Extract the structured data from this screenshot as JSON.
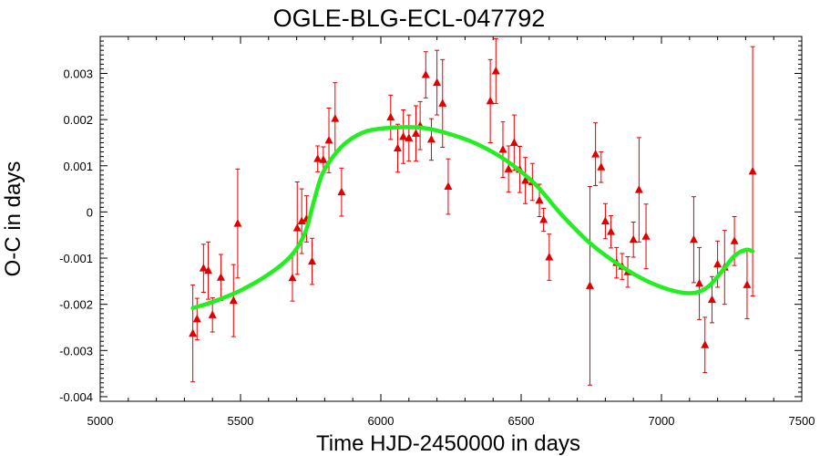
{
  "chart_data": {
    "type": "scatter",
    "title": "OGLE-BLG-ECL-047792",
    "xlabel": "Time HJD-2450000 in days",
    "ylabel": "O-C in days",
    "xlim": [
      5000,
      7500
    ],
    "ylim": [
      -0.0041,
      0.0038
    ],
    "x_ticks": [
      5000,
      5500,
      6000,
      6500,
      7000,
      7500
    ],
    "x_tick_labels": [
      "5000",
      "5500",
      "6000",
      "6500",
      "7000",
      "7500"
    ],
    "y_ticks": [
      -0.004,
      -0.003,
      -0.002,
      -0.001,
      0,
      0.001,
      0.002,
      0.003
    ],
    "y_tick_labels": [
      "-0.004",
      "-0.003",
      "-0.002",
      "-0.001",
      "0",
      "0.001",
      "0.002",
      "0.003"
    ],
    "grid": false,
    "legend": "none",
    "colors": {
      "points": "#e00000",
      "fit": "#22ee22"
    },
    "series": [
      {
        "kind": "points-with-error-bars",
        "marker": "triangle",
        "points": [
          {
            "x": 5330,
            "y": -0.00263,
            "err": 0.00105
          },
          {
            "x": 5345,
            "y": -0.00232,
            "err": 0.00045
          },
          {
            "x": 5368,
            "y": -0.00122,
            "err": 0.00052
          },
          {
            "x": 5385,
            "y": -0.00127,
            "err": 0.00062
          },
          {
            "x": 5400,
            "y": -0.00223,
            "err": 0.00037
          },
          {
            "x": 5430,
            "y": -0.00142,
            "err": 0.0005
          },
          {
            "x": 5475,
            "y": -0.00192,
            "err": 0.00078
          },
          {
            "x": 5490,
            "y": -0.00025,
            "err": 0.00118
          },
          {
            "x": 5685,
            "y": -0.00143,
            "err": 0.0005
          },
          {
            "x": 5702,
            "y": -0.00035,
            "err": 0.001
          },
          {
            "x": 5718,
            "y": -0.0002,
            "err": 0.0007
          },
          {
            "x": 5735,
            "y": -0.00015,
            "err": 0.0005
          },
          {
            "x": 5755,
            "y": -0.00107,
            "err": 0.0005
          },
          {
            "x": 5775,
            "y": 0.00115,
            "err": 0.00028
          },
          {
            "x": 5795,
            "y": 0.00113,
            "err": 0.00028
          },
          {
            "x": 5815,
            "y": 0.00155,
            "err": 0.0007
          },
          {
            "x": 5837,
            "y": 0.00202,
            "err": 0.00078
          },
          {
            "x": 5860,
            "y": 0.00043,
            "err": 0.00052
          },
          {
            "x": 6035,
            "y": 0.00205,
            "err": 0.00048
          },
          {
            "x": 6060,
            "y": 0.00138,
            "err": 0.00052
          },
          {
            "x": 6080,
            "y": 0.00163,
            "err": 0.00058
          },
          {
            "x": 6100,
            "y": 0.0016,
            "err": 0.0005
          },
          {
            "x": 6125,
            "y": 0.0017,
            "err": 0.0006
          },
          {
            "x": 6140,
            "y": 0.00187,
            "err": 0.00052
          },
          {
            "x": 6160,
            "y": 0.00297,
            "err": 0.0005
          },
          {
            "x": 6180,
            "y": 0.00157,
            "err": 0.00045
          },
          {
            "x": 6200,
            "y": 0.0028,
            "err": 0.0007
          },
          {
            "x": 6220,
            "y": 0.00235,
            "err": 0.00095
          },
          {
            "x": 6240,
            "y": 0.00055,
            "err": 0.0006
          },
          {
            "x": 6390,
            "y": 0.0024,
            "err": 0.0009
          },
          {
            "x": 6410,
            "y": 0.00305,
            "err": 0.0007
          },
          {
            "x": 6435,
            "y": 0.00135,
            "err": 0.0006
          },
          {
            "x": 6455,
            "y": 0.00093,
            "err": 0.0005
          },
          {
            "x": 6475,
            "y": 0.0015,
            "err": 0.0006
          },
          {
            "x": 6495,
            "y": 0.00092,
            "err": 0.0005
          },
          {
            "x": 6515,
            "y": 0.00068,
            "err": 0.0005
          },
          {
            "x": 6540,
            "y": 0.00065,
            "err": 0.0004
          },
          {
            "x": 6565,
            "y": 0.00025,
            "err": 0.00035
          },
          {
            "x": 6580,
            "y": -0.00017,
            "err": 0.00025
          },
          {
            "x": 6600,
            "y": -0.00098,
            "err": 0.0005
          },
          {
            "x": 6745,
            "y": -0.0016,
            "err": 0.00215
          },
          {
            "x": 6765,
            "y": 0.00125,
            "err": 0.00068
          },
          {
            "x": 6785,
            "y": 0.00097,
            "err": 0.00033
          },
          {
            "x": 6800,
            "y": -0.0002,
            "err": 0.00038
          },
          {
            "x": 6820,
            "y": -0.00043,
            "err": 0.00035
          },
          {
            "x": 6840,
            "y": -0.0011,
            "err": 0.00033
          },
          {
            "x": 6860,
            "y": -0.00118,
            "err": 0.00028
          },
          {
            "x": 6880,
            "y": -0.0013,
            "err": 0.00033
          },
          {
            "x": 6900,
            "y": -0.0006,
            "err": 0.00038
          },
          {
            "x": 6920,
            "y": 0.00048,
            "err": 0.00113
          },
          {
            "x": 6945,
            "y": -0.00053,
            "err": 0.0007
          },
          {
            "x": 7115,
            "y": -0.0006,
            "err": 0.00093
          },
          {
            "x": 7135,
            "y": -0.00155,
            "err": 0.00078
          },
          {
            "x": 7155,
            "y": -0.00288,
            "err": 0.0006
          },
          {
            "x": 7180,
            "y": -0.0019,
            "err": 0.0005
          },
          {
            "x": 7200,
            "y": -0.00113,
            "err": 0.0005
          },
          {
            "x": 7225,
            "y": -0.0012,
            "err": 0.0008
          },
          {
            "x": 7260,
            "y": -0.00063,
            "err": 0.00053
          },
          {
            "x": 7305,
            "y": -0.00158,
            "err": 0.00073
          },
          {
            "x": 7325,
            "y": 0.00088,
            "err": 0.0027
          }
        ]
      },
      {
        "kind": "fit-curve",
        "points": [
          {
            "x": 5330,
            "y": -0.00208
          },
          {
            "x": 5400,
            "y": -0.00195
          },
          {
            "x": 5500,
            "y": -0.0017
          },
          {
            "x": 5600,
            "y": -0.00135
          },
          {
            "x": 5680,
            "y": -0.00095
          },
          {
            "x": 5730,
            "y": -0.00045
          },
          {
            "x": 5760,
            "y": 0.0002
          },
          {
            "x": 5790,
            "y": 0.0008
          },
          {
            "x": 5830,
            "y": 0.0012
          },
          {
            "x": 5880,
            "y": 0.00152
          },
          {
            "x": 5950,
            "y": 0.00175
          },
          {
            "x": 6050,
            "y": 0.00183
          },
          {
            "x": 6150,
            "y": 0.00182
          },
          {
            "x": 6250,
            "y": 0.00168
          },
          {
            "x": 6350,
            "y": 0.00145
          },
          {
            "x": 6450,
            "y": 0.0011
          },
          {
            "x": 6550,
            "y": 0.0006
          },
          {
            "x": 6650,
            "y": -0.0001
          },
          {
            "x": 6750,
            "y": -0.0007
          },
          {
            "x": 6850,
            "y": -0.00115
          },
          {
            "x": 6950,
            "y": -0.0015
          },
          {
            "x": 7050,
            "y": -0.00172
          },
          {
            "x": 7120,
            "y": -0.00175
          },
          {
            "x": 7170,
            "y": -0.0016
          },
          {
            "x": 7220,
            "y": -0.00125
          },
          {
            "x": 7260,
            "y": -0.00095
          },
          {
            "x": 7300,
            "y": -0.00082
          },
          {
            "x": 7325,
            "y": -0.00085
          }
        ]
      }
    ]
  }
}
